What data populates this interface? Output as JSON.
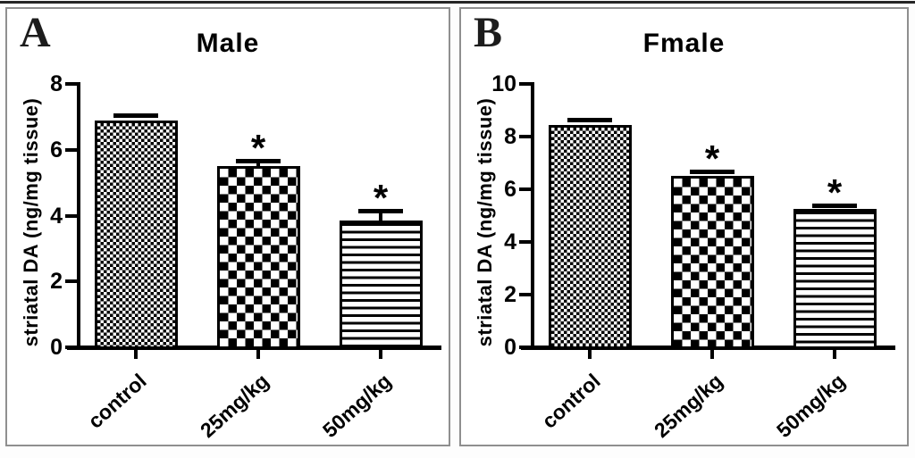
{
  "page": {
    "background": "#ffffff",
    "panel_border_color": "#8f8f8f",
    "top_rule_color": "#262626",
    "ink_color": "#000000"
  },
  "chart_data": [
    {
      "type": "bar",
      "letter": "A",
      "title": "Male",
      "ylabel": "striatal DA  (ng/mg tissue)",
      "xlabel": "",
      "categories": [
        "control",
        "25mg/kg",
        "50mg/kg"
      ],
      "values": [
        6.9,
        5.5,
        3.85
      ],
      "errors": [
        0.12,
        0.14,
        0.28
      ],
      "significance": [
        "",
        "*",
        "*"
      ],
      "ylim": [
        0,
        8
      ],
      "yticks": [
        0,
        2,
        4,
        6,
        8
      ],
      "bar_patterns": [
        "fine-checkerboard",
        "coarse-checkerboard",
        "horizontal-stripes"
      ],
      "bar_outline_color": "#000000",
      "grid": false,
      "legend": "none"
    },
    {
      "type": "bar",
      "letter": "B",
      "title": "Fmale",
      "ylabel": "striatal DA  (ng/mg tissue)",
      "xlabel": "",
      "categories": [
        "control",
        "25mg/kg",
        "50mg/kg"
      ],
      "values": [
        8.45,
        6.5,
        5.25
      ],
      "errors": [
        0.15,
        0.14,
        0.12
      ],
      "significance": [
        "",
        "*",
        "*"
      ],
      "ylim": [
        0,
        10
      ],
      "yticks": [
        0,
        2,
        4,
        6,
        8,
        10
      ],
      "bar_patterns": [
        "fine-checkerboard",
        "coarse-checkerboard",
        "horizontal-stripes"
      ],
      "bar_outline_color": "#000000",
      "grid": false,
      "legend": "none"
    }
  ]
}
